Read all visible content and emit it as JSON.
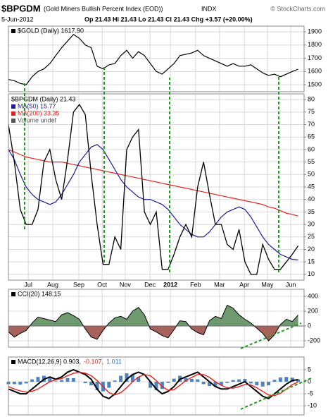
{
  "header": {
    "symbol": "$BPGDM",
    "description": "(Gold Miners Bullish Percent Index (EOD))",
    "exchange": "INDX",
    "credit": "© StockCharts.com",
    "date": "5-Jun-2012",
    "quote": "Op 21.43  Hi 21.43  Lo 21.43  Cl 21.43  Chg +3.57 (+20.00%)"
  },
  "chart_data": [
    {
      "type": "line",
      "title": "$GOLD (Daily) 1617.90",
      "x": [
        0,
        2,
        4,
        6,
        8,
        10,
        12,
        14,
        16,
        18,
        20,
        22,
        24,
        26,
        28,
        30,
        32,
        34,
        36,
        38,
        40,
        42,
        44,
        46,
        48,
        50,
        52,
        54,
        56,
        58,
        60,
        62,
        64,
        66,
        68,
        70,
        72,
        74,
        76,
        78,
        80,
        82,
        84,
        86,
        88,
        90,
        92,
        94,
        96,
        98
      ],
      "values": [
        1540,
        1530,
        1510,
        1500,
        1560,
        1600,
        1620,
        1660,
        1720,
        1780,
        1830,
        1880,
        1850,
        1800,
        1780,
        1640,
        1620,
        1650,
        1660,
        1720,
        1760,
        1700,
        1750,
        1720,
        1660,
        1600,
        1580,
        1620,
        1660,
        1720,
        1730,
        1740,
        1760,
        1720,
        1700,
        1680,
        1660,
        1640,
        1660,
        1640,
        1640,
        1650,
        1620,
        1590,
        1570,
        1580,
        1560,
        1580,
        1600,
        1617.9
      ],
      "color": "#000000",
      "xlim": [
        0,
        100
      ],
      "ylim": [
        1447,
        1943
      ],
      "yticks": [
        1500,
        1600,
        1700,
        1800,
        1900
      ],
      "grid": true
    },
    {
      "type": "line",
      "x": [
        0,
        2,
        4,
        6,
        8,
        10,
        12,
        14,
        16,
        18,
        20,
        22,
        24,
        26,
        28,
        30,
        32,
        34,
        36,
        38,
        40,
        42,
        44,
        46,
        48,
        50,
        52,
        54,
        56,
        58,
        60,
        62,
        64,
        66,
        68,
        70,
        72,
        74,
        76,
        78,
        80,
        82,
        84,
        86,
        88,
        90,
        92,
        94,
        96,
        98
      ],
      "series": [
        {
          "name": "$BPGDM (Daily) 21.43",
          "color": "#000000",
          "values": [
            70,
            55,
            36,
            30,
            30,
            36,
            55,
            60,
            48,
            40,
            56,
            75,
            78,
            74,
            50,
            30,
            14,
            14,
            25,
            20,
            60,
            65,
            68,
            35,
            30,
            35,
            12,
            12,
            18,
            25,
            30,
            25,
            45,
            55,
            42,
            30,
            30,
            22,
            20,
            28,
            15,
            10,
            10,
            22,
            16,
            12,
            12,
            15,
            18,
            21.43
          ]
        },
        {
          "name": "MA(50) 15.77",
          "color": "#1c1c9c",
          "values": [
            60,
            56,
            50,
            45,
            42,
            40,
            39,
            38,
            39,
            42,
            46,
            50,
            55,
            58,
            61,
            62,
            60,
            56,
            52,
            48,
            45,
            43,
            41,
            40,
            40,
            39,
            38,
            36,
            33,
            30,
            28,
            26,
            25,
            25,
            27,
            30,
            33,
            35,
            36,
            37,
            36,
            33,
            29,
            25,
            22,
            20,
            18,
            17,
            16,
            15.77
          ]
        },
        {
          "name": "MA(200) 33.35",
          "color": "#e8201c",
          "values": [
            60,
            59,
            58,
            57,
            56.5,
            56,
            55.5,
            55,
            55,
            55,
            54.5,
            54,
            53.5,
            53,
            52.5,
            52,
            51.5,
            51,
            50.5,
            50,
            49.5,
            49,
            48.5,
            48,
            47.5,
            47,
            46.5,
            46,
            45.5,
            45,
            44.5,
            44,
            43.5,
            43,
            42.5,
            42,
            41.5,
            41,
            40.5,
            40,
            39.5,
            39,
            38.5,
            38,
            37,
            36.5,
            35.5,
            34.5,
            34,
            33.35
          ]
        }
      ],
      "annotations": [
        "Volume undef"
      ],
      "xlim": [
        0,
        100
      ],
      "xticks": [
        {
          "value": 6.7,
          "label": "Jul"
        },
        {
          "value": 15,
          "label": "Aug"
        },
        {
          "value": 23.8,
          "label": "Sep"
        },
        {
          "value": 31.7,
          "label": "Oct"
        },
        {
          "value": 39.5,
          "label": "Nov"
        },
        {
          "value": 47.9,
          "label": "Dec"
        },
        {
          "value": 54.8,
          "label": "2012"
        },
        {
          "value": 63.3,
          "label": "Feb"
        },
        {
          "value": 71.4,
          "label": "Mar"
        },
        {
          "value": 79.8,
          "label": "Apr"
        },
        {
          "value": 87.6,
          "label": "May"
        },
        {
          "value": 95.5,
          "label": "Jun"
        }
      ],
      "ylim": [
        7.7,
        82.3
      ],
      "yticks": [
        10,
        15,
        20,
        25,
        30,
        35,
        40,
        45,
        50,
        55,
        60,
        65,
        70,
        75,
        80
      ],
      "grid": true
    },
    {
      "type": "area",
      "title": "CCI(20) 148.15",
      "x": [
        0,
        2,
        4,
        6,
        8,
        10,
        12,
        14,
        16,
        18,
        20,
        22,
        24,
        26,
        28,
        30,
        32,
        34,
        36,
        38,
        40,
        42,
        44,
        46,
        48,
        50,
        52,
        54,
        56,
        58,
        60,
        62,
        64,
        66,
        68,
        70,
        72,
        74,
        76,
        78,
        80,
        82,
        84,
        86,
        88,
        90,
        92,
        94,
        96,
        98
      ],
      "values": [
        -80,
        -150,
        -100,
        -60,
        40,
        120,
        100,
        80,
        60,
        150,
        180,
        140,
        90,
        -40,
        -150,
        -180,
        -60,
        40,
        110,
        130,
        90,
        200,
        250,
        150,
        -40,
        -80,
        -130,
        -160,
        -50,
        70,
        60,
        -40,
        -90,
        -120,
        70,
        130,
        100,
        280,
        240,
        150,
        90,
        40,
        -30,
        -100,
        -200,
        -120,
        20,
        90,
        60,
        148.15
      ],
      "color": "#000000",
      "fill_colors": [
        "#6f9a6f",
        "#a8625c"
      ],
      "xlim": [
        0,
        100
      ],
      "ylim": [
        -286,
        495
      ],
      "yticks": [
        -200,
        0,
        200,
        400
      ],
      "grid": true
    },
    {
      "type": "macd",
      "x": [
        0,
        2,
        4,
        6,
        8,
        10,
        12,
        14,
        16,
        18,
        20,
        22,
        24,
        26,
        28,
        30,
        32,
        34,
        36,
        38,
        40,
        42,
        44,
        46,
        48,
        50,
        52,
        54,
        56,
        58,
        60,
        62,
        64,
        66,
        68,
        70,
        72,
        74,
        76,
        78,
        80,
        82,
        84,
        86,
        88,
        90,
        92,
        94,
        96,
        98
      ],
      "series": [
        {
          "name": "MACD(12,26,9) 0.903,",
          "color": "#000000",
          "kind": "line",
          "values": [
            -3,
            -4,
            -5,
            -5,
            -3,
            -1,
            1,
            2,
            1,
            2,
            4,
            5,
            4,
            3,
            1,
            -3,
            -6,
            -7,
            -5,
            -2,
            1,
            3,
            4,
            3,
            0,
            -3,
            -5,
            -4,
            -2,
            1,
            2,
            3,
            4,
            2,
            0,
            -2,
            -3,
            -3,
            -2,
            -1,
            0,
            -2,
            -4,
            -6,
            -7,
            -5,
            -3,
            -1,
            0.5,
            0.903
          ]
        },
        {
          "name": "-0.107,",
          "color": "#e8201c",
          "kind": "line",
          "values": [
            -2,
            -3,
            -3.8,
            -4.3,
            -4,
            -3,
            -1.5,
            0,
            0.8,
            1.3,
            2.5,
            3.5,
            4,
            3.6,
            2.5,
            0.5,
            -2,
            -4.5,
            -5.5,
            -4.5,
            -2.5,
            0,
            2,
            3,
            2.5,
            0.5,
            -2,
            -3.5,
            -3.3,
            -1.5,
            0.5,
            1.8,
            3,
            3,
            1.8,
            0,
            -1.5,
            -2.5,
            -2.7,
            -2,
            -1.2,
            -1.3,
            -2.5,
            -4,
            -5.5,
            -5.8,
            -4.8,
            -3,
            -1.2,
            -0.107
          ]
        },
        {
          "name": "1.011",
          "color": "#2f6fb5",
          "kind": "bar",
          "values": [
            -1,
            -1,
            -1.2,
            -0.7,
            1,
            2,
            2.5,
            2,
            0.2,
            0.7,
            1.5,
            1.5,
            0,
            -0.6,
            -1.5,
            -3.5,
            -4,
            -2.5,
            0.5,
            2.5,
            3.5,
            3,
            2,
            0,
            -2.5,
            -3.5,
            -3,
            -0.5,
            1.3,
            2.5,
            1.5,
            1.2,
            1,
            -1,
            -1.8,
            -2,
            -1.5,
            -0.5,
            0.7,
            1,
            1.2,
            -0.7,
            -1.5,
            -2,
            -1.5,
            0.8,
            1.8,
            2,
            1.7,
            1.011
          ]
        }
      ],
      "xlim": [
        0,
        100
      ],
      "ylim": [
        -13.8,
        10.3
      ],
      "yticks": [
        -10,
        -5,
        0,
        5
      ],
      "grid": true
    }
  ]
}
